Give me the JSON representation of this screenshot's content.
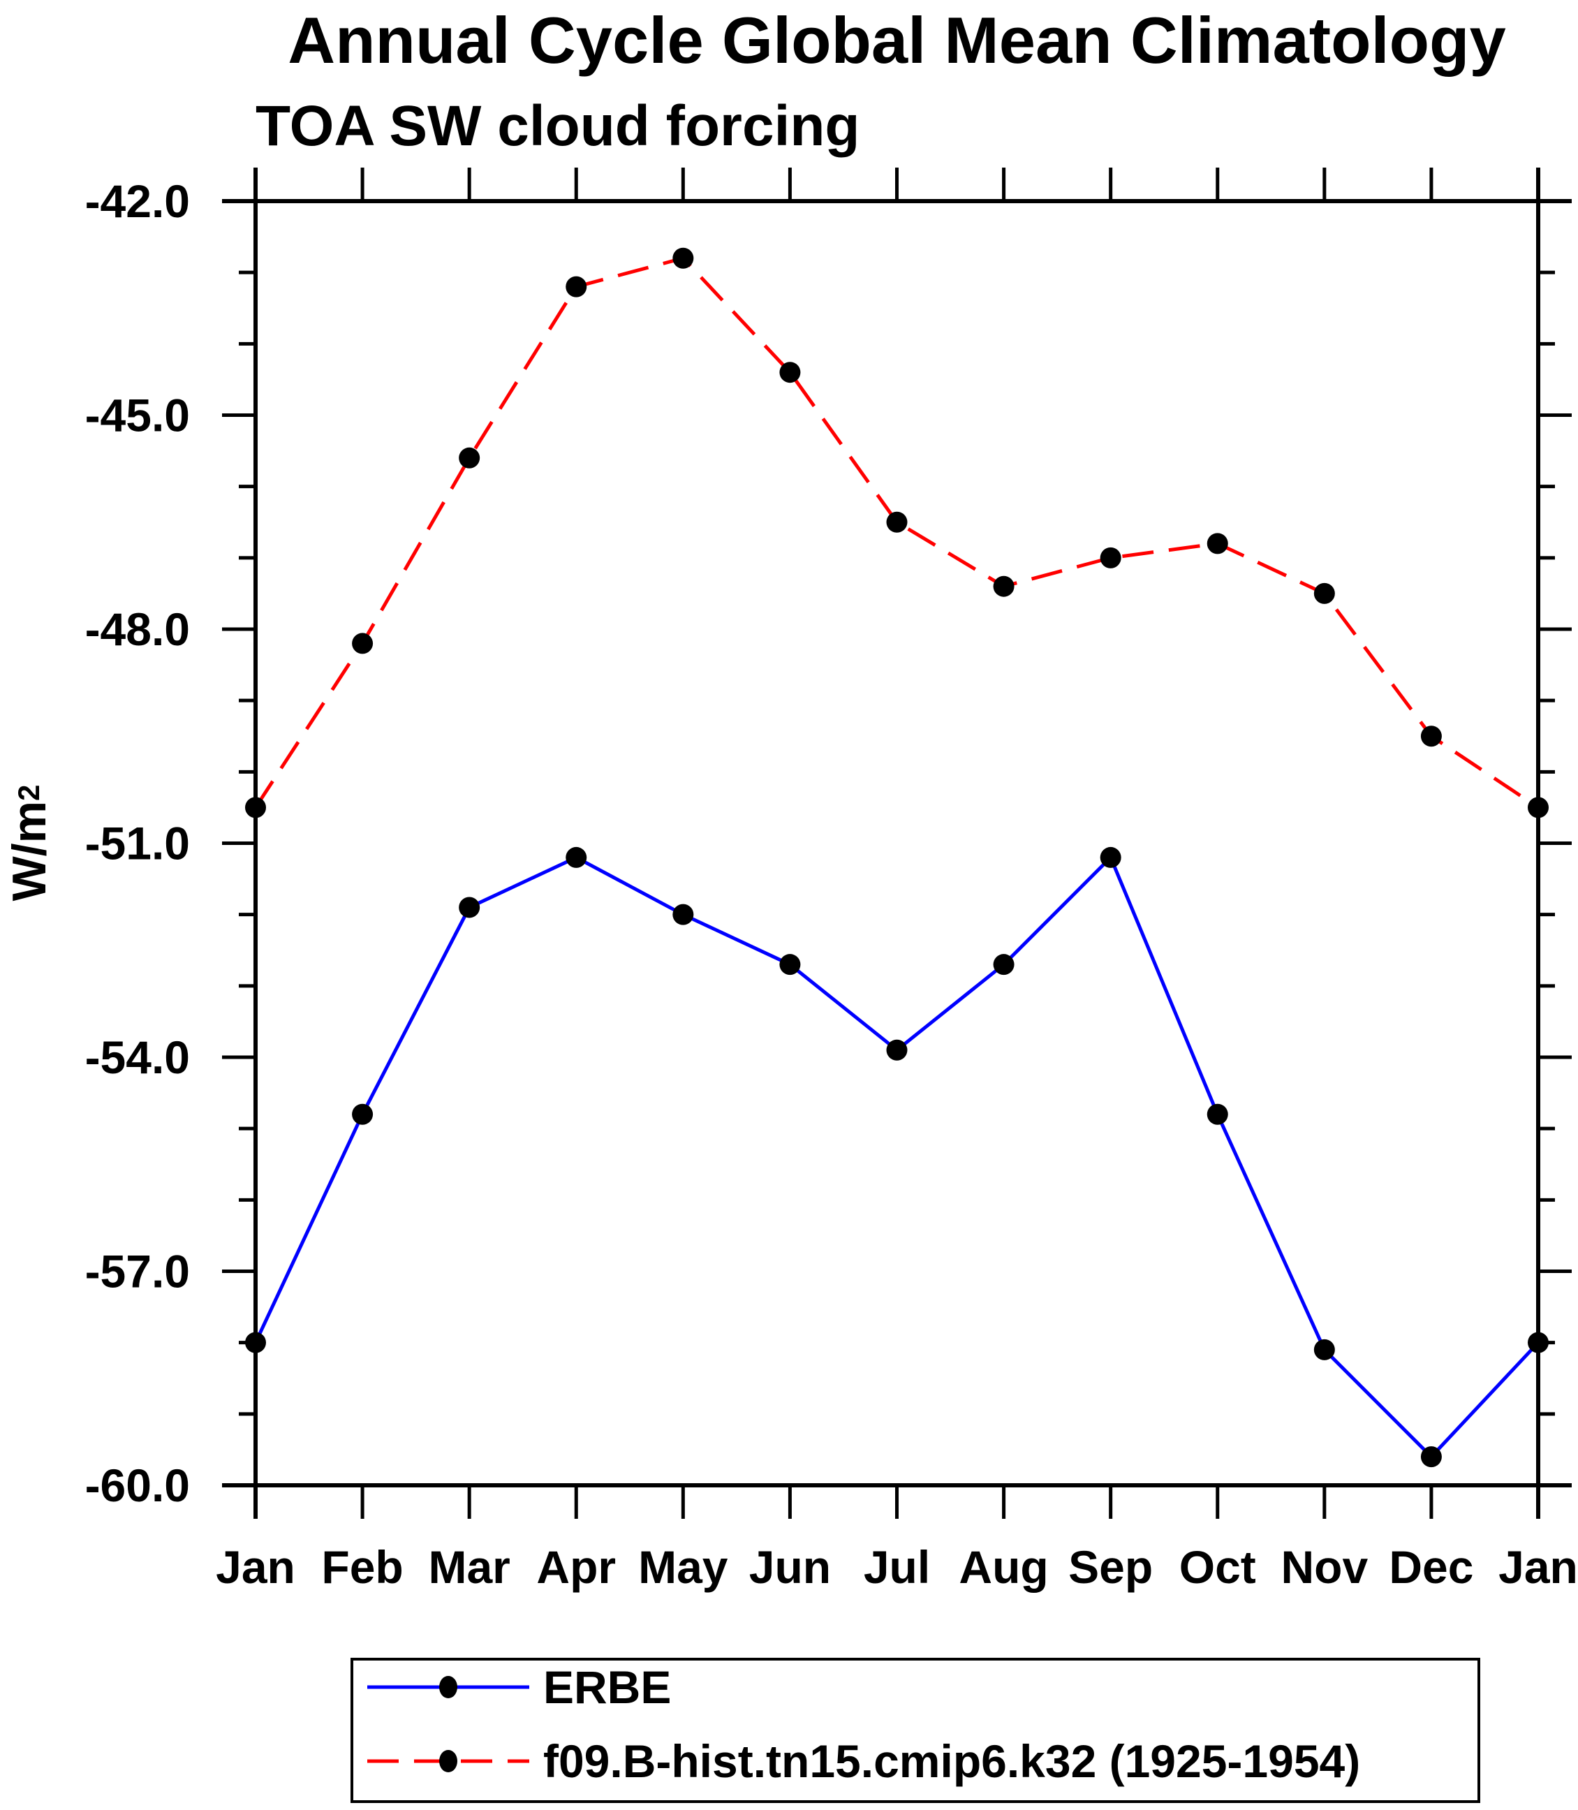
{
  "header": {
    "title": "Annual Cycle Global Mean Climatology",
    "subtitle": "TOA SW cloud forcing"
  },
  "axis": {
    "ylabel_base": "W/m",
    "ylabel_exponent": "2"
  },
  "chart_data": {
    "type": "line",
    "title": "Annual Cycle Global Mean Climatology",
    "subtitle": "TOA SW cloud forcing",
    "ylabel": "W/m²",
    "xlabel": "",
    "categories": [
      "Jan",
      "Feb",
      "Mar",
      "Apr",
      "May",
      "Jun",
      "Jul",
      "Aug",
      "Sep",
      "Oct",
      "Nov",
      "Dec",
      "Jan"
    ],
    "ylim": [
      -60.0,
      -42.0
    ],
    "ytick_major": [
      -42,
      -45,
      -48,
      -51,
      -54,
      -57,
      -60
    ],
    "ytick_major_labels": [
      "-42.0",
      "-45.0",
      "-48.0",
      "-51.0",
      "-54.0",
      "-57.0",
      "-60.0"
    ],
    "ytick_minor_step": 1,
    "grid": false,
    "legend_position": "bottom",
    "axis_color": "#000000",
    "marker_color": "#000000",
    "series": [
      {
        "name": "ERBE",
        "color": "#0000ff",
        "style": "solid",
        "marker": "filled-circle",
        "values": [
          -58.0,
          -54.8,
          -51.9,
          -51.2,
          -52.0,
          -52.7,
          -53.9,
          -52.7,
          -51.2,
          -54.8,
          -58.1,
          -59.6,
          -58.0
        ]
      },
      {
        "name": "f09.B-hist.tn15.cmip6.k32 (1925-1954)",
        "color": "#ff0000",
        "style": "dashed",
        "marker": "filled-circle",
        "values": [
          -50.5,
          -48.2,
          -45.6,
          -43.2,
          -42.8,
          -44.4,
          -46.5,
          -47.4,
          -47.0,
          -46.8,
          -47.5,
          -49.5,
          -50.5
        ]
      }
    ]
  }
}
